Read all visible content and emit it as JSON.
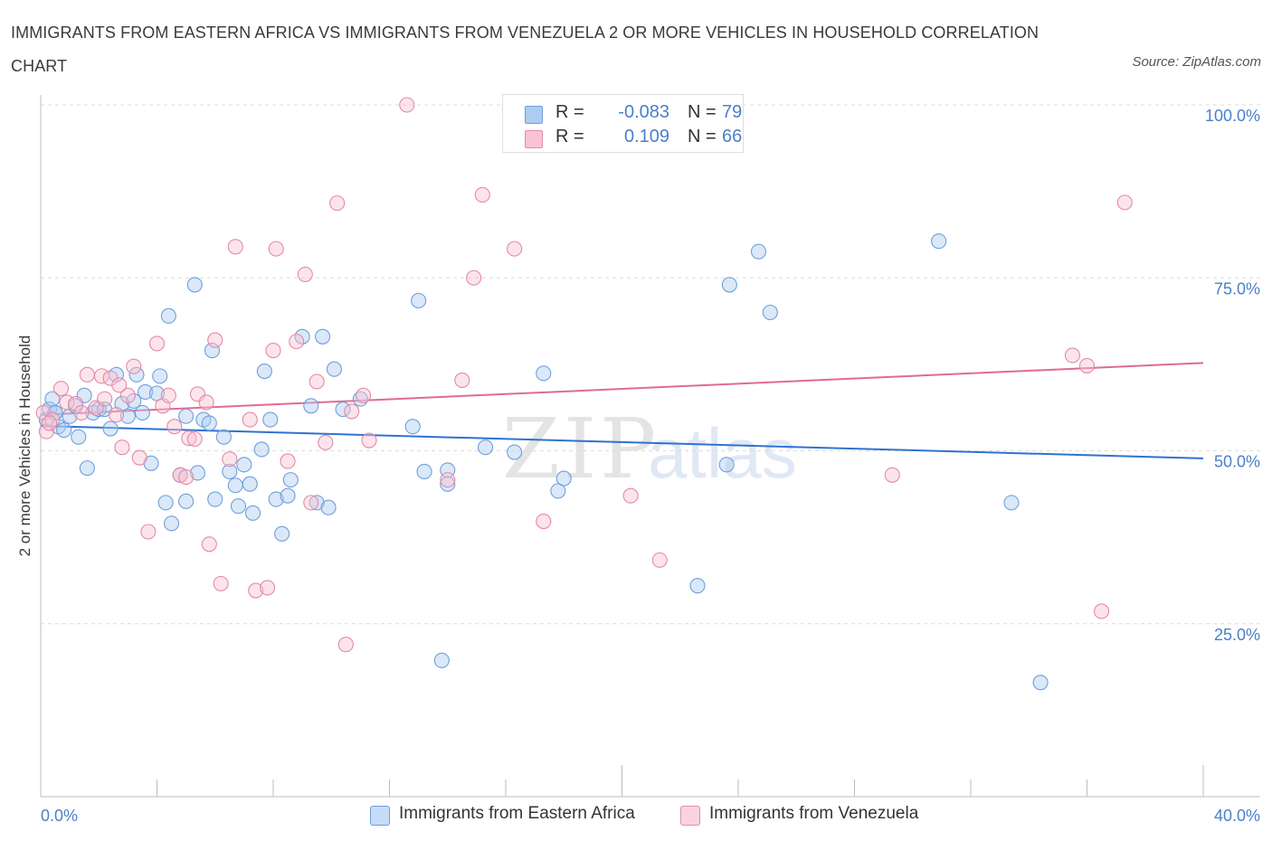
{
  "title": "IMMIGRANTS FROM EASTERN AFRICA VS IMMIGRANTS FROM VENEZUELA 2 OR MORE VEHICLES IN HOUSEHOLD CORRELATION CHART",
  "source": "Source: ZipAtlas.com",
  "watermark": {
    "zip": "ZIP",
    "atlas": "atlas"
  },
  "legend": {
    "r_label": "R =",
    "n_label": "N =",
    "rows": [
      {
        "r": "-0.083",
        "n": "79",
        "color": "#aecbf0",
        "border": "#6f9fdc"
      },
      {
        "r": "0.109",
        "n": "66",
        "color": "#f8c4d3",
        "border": "#e48aa6"
      }
    ]
  },
  "chart_data": {
    "type": "scatter",
    "title": "IMMIGRANTS FROM EASTERN AFRICA VS IMMIGRANTS FROM VENEZUELA 2 OR MORE VEHICLES IN HOUSEHOLD CORRELATION CHART",
    "xlabel": "",
    "ylabel": "2 or more Vehicles in Household",
    "xlim": [
      0,
      40
    ],
    "ylim": [
      0,
      100
    ],
    "x_tick_labels": [
      "0.0%",
      "40.0%"
    ],
    "y_tick_labels": [
      "25.0%",
      "50.0%",
      "75.0%",
      "100.0%"
    ],
    "y_ticks": [
      25,
      50,
      75,
      100
    ],
    "grid": "horizontal dashed",
    "legend_position": "bottom",
    "series": [
      {
        "name": "Immigrants from Eastern Africa",
        "color": "#6f9fdc",
        "fill": "#aecbf0",
        "line_color": "#2f72d0",
        "trend": [
          [
            0,
            53.6
          ],
          [
            40,
            48.9
          ]
        ],
        "points": [
          [
            0.2,
            54.5
          ],
          [
            0.3,
            56
          ],
          [
            0.4,
            57.5
          ],
          [
            0.5,
            55.5
          ],
          [
            0.6,
            53.5
          ],
          [
            0.8,
            53
          ],
          [
            1,
            55
          ],
          [
            1.3,
            52
          ],
          [
            1.5,
            58
          ],
          [
            1.6,
            47.5
          ],
          [
            1.8,
            55.5
          ],
          [
            2,
            56
          ],
          [
            2.2,
            56
          ],
          [
            2.4,
            53.2
          ],
          [
            2.6,
            61
          ],
          [
            2.8,
            56.8
          ],
          [
            3,
            55
          ],
          [
            3.2,
            57.2
          ],
          [
            3.3,
            61
          ],
          [
            3.5,
            55.5
          ],
          [
            3.6,
            58.5
          ],
          [
            3.8,
            48.2
          ],
          [
            4,
            58.3
          ],
          [
            4.1,
            60.8
          ],
          [
            4.3,
            42.5
          ],
          [
            4.4,
            69.5
          ],
          [
            4.5,
            39.5
          ],
          [
            4.8,
            46.5
          ],
          [
            5,
            42.7
          ],
          [
            5,
            55
          ],
          [
            5.3,
            74
          ],
          [
            5.4,
            46.8
          ],
          [
            5.6,
            54.5
          ],
          [
            5.8,
            54
          ],
          [
            5.9,
            64.5
          ],
          [
            6,
            43
          ],
          [
            6.3,
            52
          ],
          [
            6.5,
            47
          ],
          [
            6.7,
            45
          ],
          [
            6.8,
            42
          ],
          [
            7,
            48
          ],
          [
            7.2,
            45.2
          ],
          [
            7.3,
            41
          ],
          [
            7.6,
            50.2
          ],
          [
            7.7,
            61.5
          ],
          [
            7.9,
            54.5
          ],
          [
            8.1,
            43
          ],
          [
            8.3,
            38
          ],
          [
            8.5,
            43.5
          ],
          [
            8.6,
            45.8
          ],
          [
            9,
            66.5
          ],
          [
            9.3,
            56.5
          ],
          [
            9.5,
            42.5
          ],
          [
            9.7,
            66.5
          ],
          [
            9.9,
            41.8
          ],
          [
            10.1,
            61.8
          ],
          [
            10.4,
            56
          ],
          [
            11,
            57.5
          ],
          [
            12.8,
            53.5
          ],
          [
            13,
            71.7
          ],
          [
            13.2,
            47
          ],
          [
            13.8,
            19.7
          ],
          [
            14,
            47.2
          ],
          [
            14,
            45.2
          ],
          [
            15.3,
            50.5
          ],
          [
            16.3,
            49.8
          ],
          [
            17.3,
            61.2
          ],
          [
            17.8,
            44.2
          ],
          [
            18,
            46
          ],
          [
            22.6,
            30.5
          ],
          [
            23.6,
            48
          ],
          [
            23.7,
            74
          ],
          [
            24.7,
            78.8
          ],
          [
            25.1,
            70
          ],
          [
            30.9,
            80.3
          ],
          [
            33.4,
            42.5
          ],
          [
            34.4,
            16.5
          ],
          [
            0.5,
            55.5
          ],
          [
            1.2,
            56.5
          ]
        ]
      },
      {
        "name": "Immigrants from Venezuela",
        "color": "#e48aa6",
        "fill": "#f8c4d3",
        "line_color": "#e06b92",
        "trend": [
          [
            0,
            55.2
          ],
          [
            40,
            62.7
          ]
        ],
        "points": [
          [
            0.1,
            55.5
          ],
          [
            0.2,
            52.8
          ],
          [
            0.4,
            54.5
          ],
          [
            0.7,
            59
          ],
          [
            0.9,
            57
          ],
          [
            1.2,
            56.8
          ],
          [
            1.6,
            61
          ],
          [
            1.9,
            56.2
          ],
          [
            2.1,
            60.8
          ],
          [
            2.2,
            57.5
          ],
          [
            2.4,
            60.5
          ],
          [
            2.6,
            55.2
          ],
          [
            2.8,
            50.5
          ],
          [
            3,
            58
          ],
          [
            3.2,
            62.2
          ],
          [
            3.4,
            49
          ],
          [
            3.7,
            38.3
          ],
          [
            4,
            65.5
          ],
          [
            4.2,
            56.5
          ],
          [
            4.4,
            58
          ],
          [
            4.6,
            53.5
          ],
          [
            4.8,
            46.5
          ],
          [
            5,
            46.2
          ],
          [
            5.1,
            51.8
          ],
          [
            5.3,
            51.7
          ],
          [
            5.4,
            58.2
          ],
          [
            5.7,
            57
          ],
          [
            5.8,
            36.5
          ],
          [
            6,
            66
          ],
          [
            6.2,
            30.8
          ],
          [
            6.5,
            48.8
          ],
          [
            6.7,
            79.5
          ],
          [
            7.2,
            54.5
          ],
          [
            7.4,
            29.8
          ],
          [
            7.8,
            30.2
          ],
          [
            8,
            64.5
          ],
          [
            8.1,
            79.2
          ],
          [
            8.5,
            48.5
          ],
          [
            8.8,
            65.8
          ],
          [
            9.1,
            75.5
          ],
          [
            9.3,
            42.5
          ],
          [
            9.5,
            60
          ],
          [
            9.8,
            51.2
          ],
          [
            10.2,
            85.8
          ],
          [
            10.5,
            22
          ],
          [
            10.7,
            55.7
          ],
          [
            11.1,
            58
          ],
          [
            11.3,
            51.5
          ],
          [
            12.6,
            100
          ],
          [
            14,
            45.8
          ],
          [
            14.5,
            60.2
          ],
          [
            14.9,
            75
          ],
          [
            15.2,
            87
          ],
          [
            16.3,
            79.2
          ],
          [
            17.3,
            39.8
          ],
          [
            20.3,
            43.5
          ],
          [
            21.3,
            34.2
          ],
          [
            22.6,
            100
          ],
          [
            29.3,
            46.5
          ],
          [
            35.5,
            63.8
          ],
          [
            36,
            62.3
          ],
          [
            36.5,
            26.8
          ],
          [
            37.3,
            85.9
          ],
          [
            0.3,
            54
          ],
          [
            1.4,
            55.5
          ],
          [
            2.7,
            59.5
          ]
        ]
      }
    ]
  }
}
